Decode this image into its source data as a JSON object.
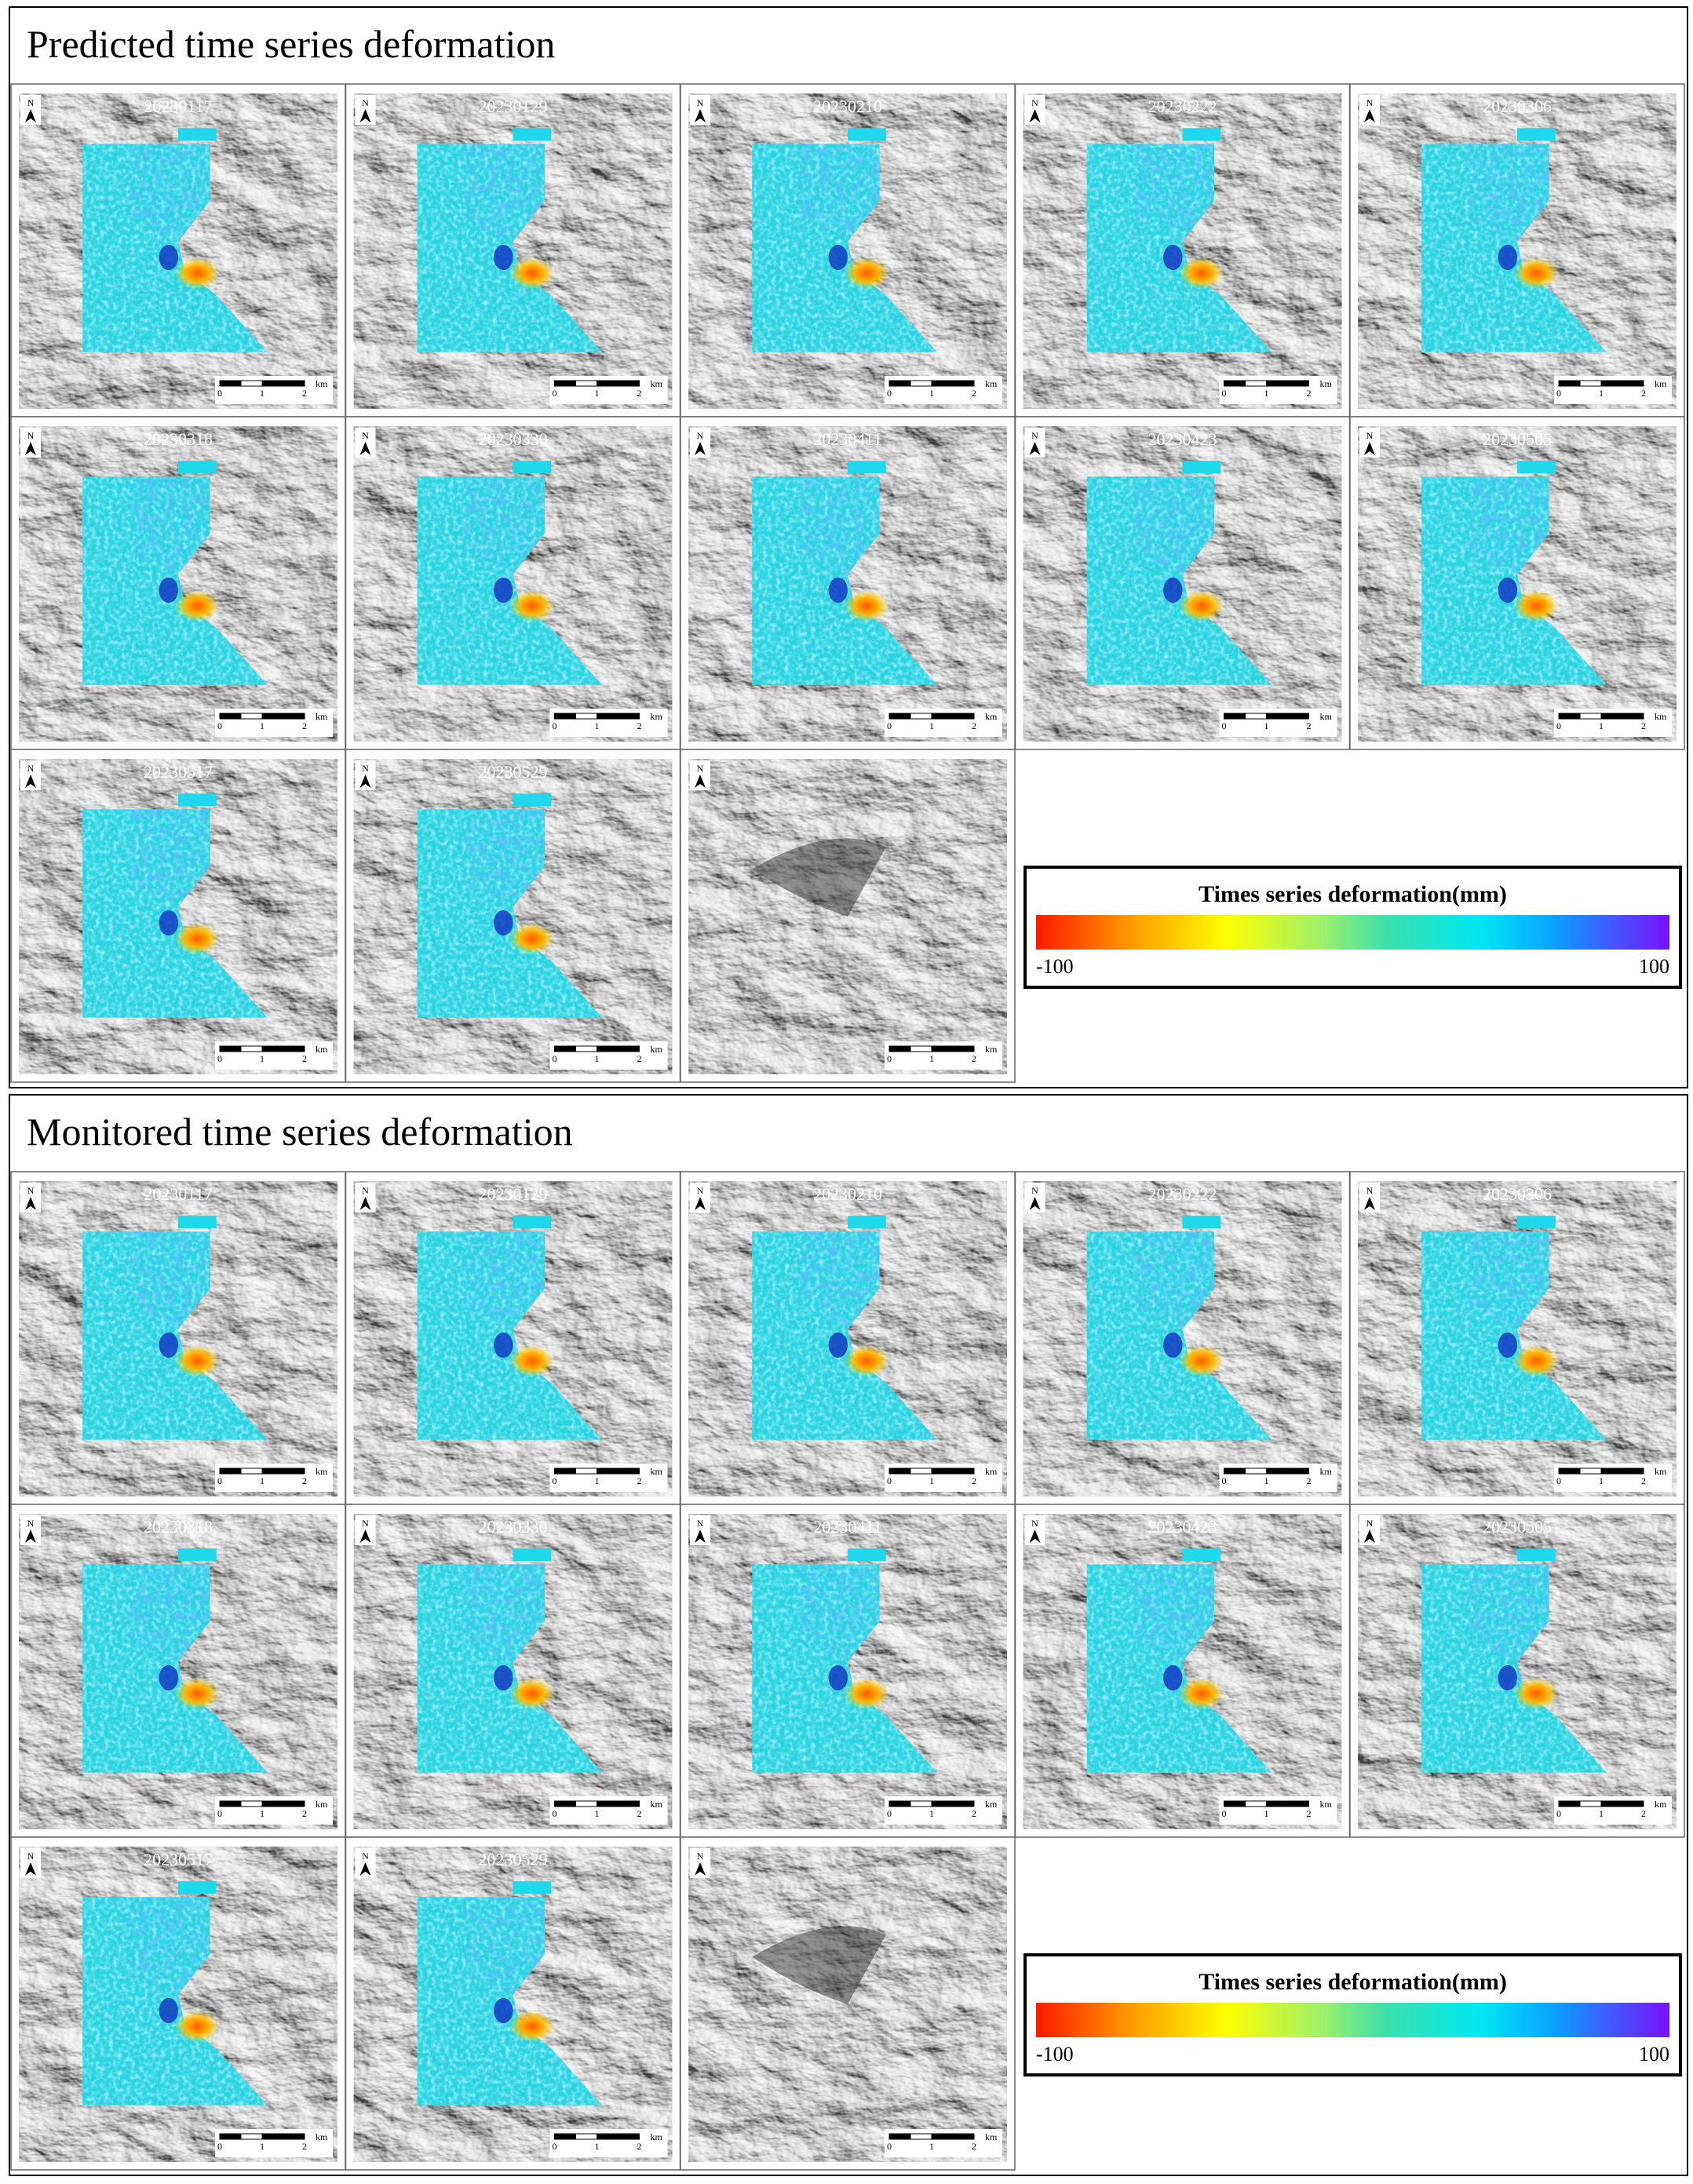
{
  "sections": [
    {
      "title": "Predicted time series deformation",
      "panels": [
        {
          "date": "20230117"
        },
        {
          "date": "20230129"
        },
        {
          "date": "20230210"
        },
        {
          "date": "20230222"
        },
        {
          "date": "20230306"
        },
        {
          "date": "20230318"
        },
        {
          "date": "20230330"
        },
        {
          "date": "20230411"
        },
        {
          "date": "20230423"
        },
        {
          "date": "20230505"
        },
        {
          "date": "20230517"
        },
        {
          "date": "20230529"
        }
      ],
      "legend": {
        "title": "Times series deformation(mm)",
        "min_label": "-100",
        "max_label": "100"
      }
    },
    {
      "title": "Monitored time series deformation",
      "panels": [
        {
          "date": "20230117"
        },
        {
          "date": "20230129"
        },
        {
          "date": "20230210"
        },
        {
          "date": "20230222"
        },
        {
          "date": "20230306"
        },
        {
          "date": "20230318"
        },
        {
          "date": "20230330"
        },
        {
          "date": "20230411"
        },
        {
          "date": "20230423"
        },
        {
          "date": "20230505"
        },
        {
          "date": "20230517"
        },
        {
          "date": "20230529"
        }
      ],
      "legend": {
        "title": "Times series deformation(mm)",
        "min_label": "-100",
        "max_label": "100"
      }
    }
  ],
  "scale_bar": {
    "ticks": [
      "0",
      "1",
      "2"
    ],
    "unit": "km"
  },
  "north_label": "N"
}
